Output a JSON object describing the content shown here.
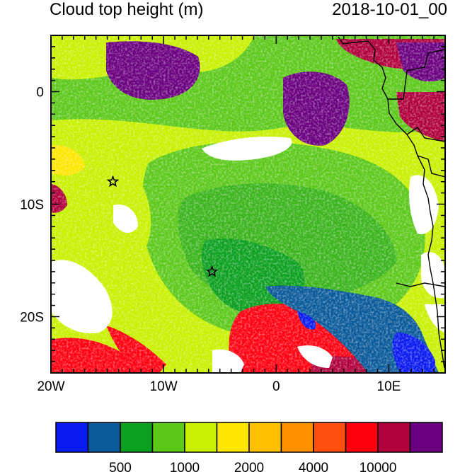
{
  "title": "Cloud top height (m)",
  "timestamp": "2018-10-01_00",
  "axes": {
    "lat_ticks": [
      {
        "value": 0,
        "label": "0"
      },
      {
        "value": -10,
        "label": "10S"
      },
      {
        "value": -20,
        "label": "20S"
      }
    ],
    "lon_ticks": [
      {
        "value": -20,
        "label": "20W"
      },
      {
        "value": -10,
        "label": "10W"
      },
      {
        "value": 0,
        "label": "0"
      },
      {
        "value": 10,
        "label": "10E"
      }
    ],
    "lon_range": [
      -20,
      15
    ],
    "lat_range": [
      -25,
      5
    ]
  },
  "markers": [
    {
      "name": "star-marker-north",
      "lon": -14.5,
      "lat": -8
    },
    {
      "name": "star-marker-south",
      "lon": -5.7,
      "lat": -16
    }
  ],
  "colorbar": {
    "colors": [
      "#0a1bf0",
      "#0a5a9a",
      "#0ca020",
      "#5cc81a",
      "#c8f000",
      "#ffe600",
      "#ffc000",
      "#ff9000",
      "#ff5010",
      "#ff0010",
      "#b0003c",
      "#6a0080"
    ],
    "labels": [
      "500",
      "1000",
      "2000",
      "4000",
      "10000"
    ]
  }
}
